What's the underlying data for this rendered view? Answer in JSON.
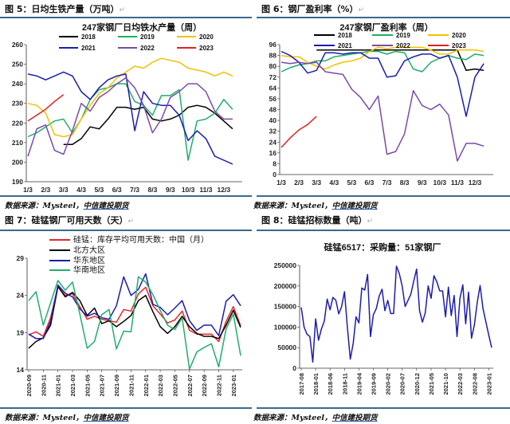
{
  "figures": [
    {
      "caption": "图 5：日均生铁产量（万吨）",
      "source_prefix": "数据来源：Mysteel，",
      "source_org": "中信建投期货"
    },
    {
      "caption": "图 6：钢厂盈利率（%）",
      "source_prefix": "数据来源：Mysteel，",
      "source_org": "中信建投期货"
    },
    {
      "caption": "图 7：硅锰钢厂可用天数（天）",
      "source_prefix": "数据来源：Mysteel，",
      "source_org": "中信建投期货"
    },
    {
      "caption": "图 8：硅锰招标数量（吨）",
      "source_prefix": "数据来源：Mysteel，",
      "source_org": "中信建投期货"
    }
  ],
  "return_mark": "↵",
  "chart_data": [
    {
      "type": "line",
      "title": "247家钢厂日均铁水产量（周）",
      "ylim": [
        190,
        260
      ],
      "yticks": [
        190,
        200,
        210,
        220,
        230,
        240,
        250,
        260
      ],
      "xtick_labels": [
        "1/3",
        "2/3",
        "3/3",
        "4/3",
        "5/3",
        "6/3",
        "7/3",
        "8/3",
        "9/3",
        "10/3",
        "11/3",
        "12/3"
      ],
      "x": [
        "1/3",
        "1/18",
        "2/3",
        "2/18",
        "3/3",
        "3/18",
        "4/3",
        "4/18",
        "5/3",
        "5/18",
        "6/3",
        "6/18",
        "7/3",
        "7/18",
        "8/3",
        "8/18",
        "9/3",
        "9/18",
        "10/3",
        "10/18",
        "11/3",
        "11/18",
        "12/3",
        "12/18"
      ],
      "legend": "top",
      "series": [
        {
          "name": "2018",
          "color": "#000000",
          "values": [
            null,
            null,
            null,
            null,
            209,
            209,
            212,
            218,
            217,
            222,
            228,
            228,
            227,
            228,
            222,
            221,
            222,
            224,
            228,
            229,
            228,
            225,
            221,
            217
          ]
        },
        {
          "name": "2019",
          "color": "#1fae6a",
          "values": [
            213,
            215,
            218,
            221,
            222,
            215,
            222,
            232,
            237,
            238,
            240,
            240,
            231,
            229,
            224,
            234,
            234,
            237,
            201,
            221,
            222,
            225,
            232,
            227
          ]
        },
        {
          "name": "2020",
          "color": "#f2c200",
          "values": [
            230,
            229,
            225,
            214,
            213,
            214,
            222,
            229,
            235,
            238,
            243,
            246,
            249,
            248,
            251,
            253,
            252,
            251,
            248,
            247,
            246,
            244,
            246,
            244
          ]
        },
        {
          "name": "2021",
          "color": "#1c1cb0",
          "values": [
            245,
            244,
            242,
            244,
            246,
            244,
            236,
            232,
            238,
            242,
            244,
            245,
            216,
            236,
            230,
            229,
            229,
            224,
            211,
            216,
            212,
            203,
            201,
            199
          ]
        },
        {
          "name": "2022",
          "color": "#7a4aa8",
          "values": [
            203,
            217,
            219,
            206,
            204,
            216,
            230,
            226,
            233,
            236,
            240,
            243,
            238,
            229,
            215,
            222,
            233,
            236,
            240,
            240,
            236,
            226,
            222,
            222
          ]
        },
        {
          "name": "2023",
          "color": "#e02020",
          "values": [
            221,
            224,
            227,
            231,
            234.5,
            null,
            null,
            null,
            null,
            null,
            null,
            null,
            null,
            null,
            null,
            null,
            null,
            null,
            null,
            null,
            null,
            null,
            null,
            null
          ]
        }
      ]
    },
    {
      "type": "line",
      "title": "247家钢厂盈利率（周）",
      "ylim": [
        0,
        96
      ],
      "yticks": [
        0,
        8,
        16,
        24,
        32,
        40,
        48,
        56,
        64,
        72,
        80,
        88,
        96
      ],
      "xtick_labels": [
        "1/3",
        "2/3",
        "3/3",
        "4/3",
        "5/3",
        "6/3",
        "7/3",
        "8/3",
        "9/3",
        "10/3",
        "11/3",
        "12/3"
      ],
      "x": [
        "1/3",
        "1/18",
        "2/3",
        "2/18",
        "3/3",
        "3/18",
        "4/3",
        "4/18",
        "5/3",
        "5/18",
        "6/3",
        "6/18",
        "7/3",
        "7/18",
        "8/3",
        "8/18",
        "9/3",
        "9/18",
        "10/3",
        "10/18",
        "11/3",
        "11/18",
        "12/3",
        "12/18"
      ],
      "legend": "top",
      "series": [
        {
          "name": "2018",
          "color": "#000000",
          "values": [
            null,
            null,
            null,
            null,
            92,
            92,
            92,
            92,
            92,
            92,
            92,
            92,
            92,
            92,
            92,
            92,
            92,
            92,
            92,
            92,
            92,
            77,
            78,
            77
          ]
        },
        {
          "name": "2019",
          "color": "#1fae6a",
          "values": [
            76,
            79,
            81,
            82,
            84,
            84,
            87,
            88,
            89,
            90,
            91,
            91,
            89,
            91,
            90,
            78,
            76,
            83,
            86,
            88,
            86,
            85,
            89,
            88
          ]
        },
        {
          "name": "2020",
          "color": "#f2c200",
          "values": [
            88,
            87,
            87,
            83,
            80,
            78,
            81,
            83,
            84,
            86,
            91,
            94,
            93,
            94,
            94,
            94,
            94,
            92,
            89,
            89,
            92,
            92,
            92,
            91
          ]
        },
        {
          "name": "2021",
          "color": "#1c1cb0",
          "values": [
            91,
            88,
            83,
            75,
            77,
            90,
            90,
            89,
            90,
            90,
            86,
            86,
            72,
            73,
            84,
            87,
            89,
            89,
            86,
            88,
            72,
            43,
            72,
            82
          ]
        },
        {
          "name": "2022",
          "color": "#7a4aa8",
          "values": [
            83,
            82,
            83,
            82,
            83,
            76,
            75,
            74,
            63,
            57,
            48,
            58,
            15,
            17,
            30,
            62,
            51,
            48,
            52,
            44,
            10,
            23,
            23,
            21
          ]
        },
        {
          "name": "2023",
          "color": "#e02020",
          "values": [
            20,
            27,
            33,
            37,
            43,
            null,
            null,
            null,
            null,
            null,
            null,
            null,
            null,
            null,
            null,
            null,
            null,
            null,
            null,
            null,
            null,
            null,
            null,
            null
          ]
        }
      ]
    },
    {
      "type": "line",
      "title": "",
      "ylim": [
        14,
        29
      ],
      "yticks": [
        14,
        19,
        24,
        29
      ],
      "x": [
        "2020-09",
        "2020-10",
        "2020-11",
        "2020-12",
        "2021-01",
        "2021-02",
        "2021-03",
        "2021-04",
        "2021-05",
        "2021-06",
        "2021-07",
        "2021-08",
        "2021-09",
        "2021-10",
        "2021-11",
        "2021-12",
        "2022-01",
        "2022-02",
        "2022-03",
        "2022-04",
        "2022-05",
        "2022-06",
        "2022-07",
        "2022-08",
        "2022-09",
        "2022-10",
        "2022-11",
        "2022-12",
        "2023-01",
        "2023-02"
      ],
      "xtick_labels": [
        "2020-09",
        "2020-11",
        "2021-01",
        "2021-03",
        "2021-05",
        "2021-07",
        "2021-09",
        "2021-11",
        "2022-01",
        "2022-03",
        "2022-05",
        "2022-07",
        "2022-09",
        "2022-11",
        "2023-01"
      ],
      "legend": "top-left",
      "series": [
        {
          "name": "硅锰：库存平均可用天数：中国（月）",
          "color": "#e8262b",
          "values": [
            18.7,
            19.1,
            18.5,
            21,
            25.2,
            24,
            24.2,
            22.5,
            20.8,
            21.2,
            20.8,
            20.6,
            20.4,
            22.1,
            21.9,
            24.2,
            25.1,
            22.6,
            21.5,
            20.3,
            20.7,
            21.9,
            19.3,
            18.8,
            18.8,
            18.8,
            17.8,
            20.5,
            22.5,
            19.9
          ]
        },
        {
          "name": "北方大区",
          "color": "#000000",
          "values": [
            16.9,
            17.8,
            18.3,
            20,
            25.2,
            23.8,
            24.4,
            23.3,
            21.3,
            22.3,
            20.2,
            20.6,
            19.8,
            20.5,
            21.3,
            23.3,
            24,
            21.8,
            19.8,
            18.9,
            19.8,
            21.2,
            19.8,
            18.9,
            18.5,
            18.5,
            18.2,
            20,
            22,
            19.7
          ]
        },
        {
          "name": "华东地区",
          "color": "#1c1cb0",
          "values": [
            18.8,
            18.2,
            18.2,
            20.5,
            25.4,
            24.3,
            23.8,
            22.2,
            21.2,
            21.6,
            21,
            20.8,
            22.6,
            26.5,
            24,
            24.8,
            26.9,
            22.8,
            22.4,
            21.4,
            22.3,
            23.3,
            20.6,
            19.3,
            20,
            20,
            18.6,
            23.2,
            24.1,
            22.6
          ]
        },
        {
          "name": "华南地区",
          "color": "#1fae6a",
          "values": [
            23.3,
            24.5,
            20,
            23,
            26,
            24.7,
            25.8,
            21.5,
            16.9,
            17.8,
            21.4,
            22.1,
            16.8,
            19.2,
            19.1,
            26.5,
            25.8,
            24.1,
            22,
            20,
            19.4,
            21,
            14.1,
            16.4,
            17,
            17.5,
            14.4,
            19.5,
            21.5,
            15.9
          ]
        }
      ]
    },
    {
      "type": "line",
      "title": "硅锰6517：采购量：51家钢厂",
      "ylim": [
        0,
        250000
      ],
      "yticks": [
        0,
        50000,
        100000,
        150000,
        200000,
        250000
      ],
      "xtick_labels": [
        "2017-08",
        "2018-01",
        "2018-06",
        "2018-11",
        "2019-04",
        "2019-09",
        "2020-02",
        "2020-07",
        "2020-12",
        "2021-05",
        "2021-10",
        "2022-03",
        "2022-08",
        "2023-01"
      ],
      "x_start": "2017-08",
      "x_end": "2023-02",
      "legend": "none",
      "series": [
        {
          "color": "#1c1cb0",
          "values": [
            148000,
            100000,
            83000,
            77000,
            15000,
            120000,
            68000,
            95000,
            115000,
            168000,
            142000,
            172000,
            165000,
            132000,
            150000,
            186000,
            100000,
            22000,
            60000,
            125000,
            110000,
            195000,
            190000,
            228000,
            77000,
            130000,
            145000,
            175000,
            192000,
            140000,
            165000,
            133000,
            133000,
            248000,
            230000,
            200000,
            150000,
            165000,
            180000,
            212000,
            241000,
            140000,
            112000,
            135000,
            200000,
            170000,
            225000,
            210000,
            188000,
            188000,
            125000,
            197000,
            128000,
            177000,
            77000,
            170000,
            203000,
            108000,
            185000,
            73000,
            105000,
            160000,
            201000,
            145000,
            112000,
            80000,
            50000
          ]
        }
      ]
    }
  ]
}
